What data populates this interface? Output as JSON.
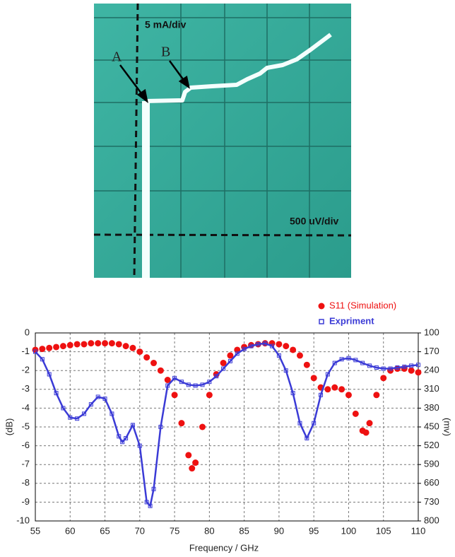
{
  "oscilloscope": {
    "y_scale": "5 mA/div",
    "x_scale": "500 uV/div",
    "point_a": "A",
    "point_b": "B"
  },
  "chart_data": {
    "type": "line",
    "xlabel": "Frequency / GHz",
    "ylabel": "(dB)",
    "y2label": "(mv)",
    "xlim": [
      55,
      110
    ],
    "xticks": [
      55,
      60,
      65,
      70,
      75,
      80,
      85,
      90,
      95,
      100,
      105,
      110
    ],
    "ylim": [
      -10,
      0
    ],
    "yticks": [
      0,
      -1,
      -2,
      -3,
      -4,
      -5,
      -6,
      -7,
      -8,
      -9,
      -10
    ],
    "y2lim": [
      800,
      100
    ],
    "y2ticks": [
      100,
      170,
      240,
      310,
      380,
      450,
      520,
      590,
      660,
      730,
      800
    ],
    "grid": true,
    "series": [
      {
        "name": "S11 (Simulation)",
        "color": "#ee1111",
        "marker": "circle",
        "axis": "y",
        "x": [
          55,
          56,
          57,
          58,
          59,
          60,
          61,
          62,
          63,
          64,
          65,
          66,
          67,
          68,
          69,
          70,
          71,
          72,
          73,
          74,
          75,
          76,
          77,
          77.5,
          78,
          79,
          80,
          81,
          82,
          83,
          84,
          85,
          86,
          87,
          88,
          89,
          90,
          91,
          92,
          93,
          94,
          95,
          96,
          97,
          98,
          99,
          100,
          101,
          102,
          102.5,
          103,
          104,
          105,
          106,
          107,
          108,
          109,
          110
        ],
        "values": [
          -0.9,
          -0.85,
          -0.8,
          -0.75,
          -0.7,
          -0.65,
          -0.6,
          -0.6,
          -0.55,
          -0.55,
          -0.55,
          -0.55,
          -0.6,
          -0.7,
          -0.8,
          -1.0,
          -1.3,
          -1.6,
          -2.0,
          -2.5,
          -3.3,
          -4.8,
          -6.5,
          -7.2,
          -6.9,
          -5.0,
          -3.3,
          -2.2,
          -1.6,
          -1.2,
          -0.9,
          -0.75,
          -0.65,
          -0.6,
          -0.55,
          -0.55,
          -0.6,
          -0.7,
          -0.9,
          -1.2,
          -1.7,
          -2.4,
          -2.9,
          -3.0,
          -2.9,
          -3.0,
          -3.3,
          -4.3,
          -5.2,
          -5.3,
          -4.8,
          -3.3,
          -2.4,
          -2.0,
          -1.9,
          -1.9,
          -2.0,
          -2.1
        ]
      },
      {
        "name": "Expriment",
        "color": "#3b3bd6",
        "marker": "square",
        "axis": "y2",
        "x": [
          55,
          56,
          57,
          58,
          59,
          60,
          61,
          62,
          63,
          64,
          65,
          66,
          67,
          67.5,
          68,
          69,
          70,
          71,
          71.5,
          72,
          73,
          74,
          75,
          76,
          77,
          78,
          79,
          80,
          81,
          82,
          83,
          84,
          85,
          86,
          87,
          88,
          89,
          90,
          91,
          92,
          93,
          94,
          95,
          96,
          97,
          98,
          99,
          100,
          101,
          102,
          103,
          104,
          105,
          106,
          107,
          108,
          109,
          110
        ],
        "values": [
          170,
          198,
          254,
          324,
          380,
          415,
          419,
          401,
          366,
          338,
          345,
          401,
          485,
          506,
          492,
          443,
          520,
          730,
          744,
          681,
          450,
          296,
          268,
          282,
          293,
          296,
          293,
          282,
          261,
          233,
          205,
          177,
          160,
          149,
          142,
          139,
          149,
          184,
          240,
          324,
          436,
          492,
          436,
          331,
          254,
          212,
          198,
          194,
          201,
          212,
          222,
          229,
          233,
          233,
          229,
          226,
          222,
          219
        ]
      }
    ]
  }
}
